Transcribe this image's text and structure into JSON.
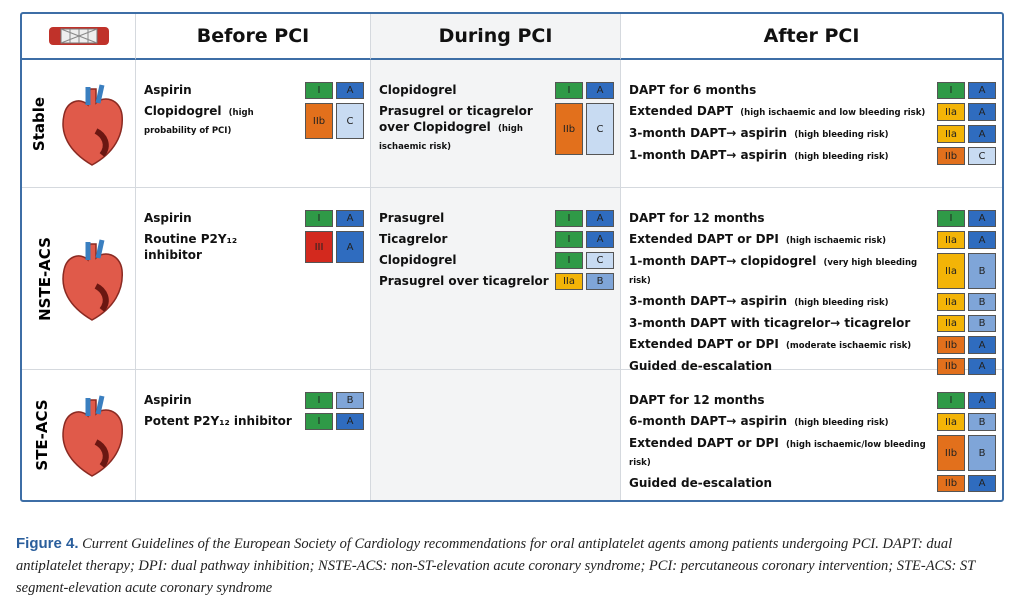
{
  "header": {
    "columns": [
      "Before PCI",
      "During PCI",
      "After PCI"
    ]
  },
  "rows": [
    {
      "label": "Stable",
      "cells": [
        [
          {
            "text": "Aspirin",
            "class": "I",
            "level": "A"
          },
          {
            "text": "Clopidogrel",
            "note": "(high probability of PCI)",
            "class": "IIb",
            "level": "C"
          }
        ],
        [
          {
            "text": "Clopidogrel",
            "class": "I",
            "level": "A"
          },
          {
            "text": "Prasugrel or ticagrelor over Clopidogrel",
            "note": "(high ischaemic risk)",
            "class": "IIb",
            "level": "C"
          }
        ],
        [
          {
            "text": "DAPT for 6 months",
            "class": "I",
            "level": "A"
          },
          {
            "text": "Extended DAPT",
            "note": "(high ischaemic and low bleeding risk)",
            "class": "IIa",
            "level": "A"
          },
          {
            "text": "3-month DAPT→ aspirin",
            "note": "(high bleeding risk)",
            "class": "IIa",
            "level": "A"
          },
          {
            "text": "1-month DAPT→ aspirin",
            "note": "(high bleeding risk)",
            "class": "IIb",
            "level": "C"
          }
        ]
      ]
    },
    {
      "label": "NSTE-ACS",
      "cells": [
        [
          {
            "text": "Aspirin",
            "class": "I",
            "level": "A"
          },
          {
            "text": "Routine P2Y₁₂ inhibitor",
            "class": "III",
            "level": "A"
          }
        ],
        [
          {
            "text": "Prasugrel",
            "class": "I",
            "level": "A"
          },
          {
            "text": "Ticagrelor",
            "class": "I",
            "level": "A"
          },
          {
            "text": "Clopidogrel",
            "class": "I",
            "level": "C"
          },
          {
            "text": "Prasugrel over ticagrelor",
            "class": "IIa",
            "level": "B"
          }
        ],
        [
          {
            "text": "DAPT for 12 months",
            "class": "I",
            "level": "A"
          },
          {
            "text": "Extended DAPT or DPI",
            "note": "(high ischaemic risk)",
            "class": "IIa",
            "level": "A"
          },
          {
            "text": "1-month DAPT→ clopidogrel",
            "note": "(very high bleeding risk)",
            "class": "IIa",
            "level": "B"
          },
          {
            "text": "3-month DAPT→ aspirin",
            "note": "(high bleeding risk)",
            "class": "IIa",
            "level": "B"
          },
          {
            "text": "3-month DAPT with ticagrelor→ ticagrelor",
            "class": "IIa",
            "level": "B"
          },
          {
            "text": "Extended DAPT or DPI",
            "note": "(moderate ischaemic risk)",
            "class": "IIb",
            "level": "A"
          },
          {
            "text": "Guided de-escalation",
            "class": "IIb",
            "level": "A"
          }
        ]
      ]
    },
    {
      "label": "STE-ACS",
      "cells": [
        [
          {
            "text": "Aspirin",
            "class": "I",
            "level": "B"
          },
          {
            "text": "Potent P2Y₁₂ inhibitor",
            "class": "I",
            "level": "A"
          }
        ],
        [],
        [
          {
            "text": "DAPT for 12 months",
            "class": "I",
            "level": "A"
          },
          {
            "text": "6-month DAPT→ aspirin",
            "note": "(high bleeding risk)",
            "class": "IIa",
            "level": "B"
          },
          {
            "text": "Extended DAPT or DPI",
            "note": "(high ischaemic/low bleeding risk)",
            "class": "IIb",
            "level": "B"
          },
          {
            "text": "Guided de-escalation",
            "class": "IIb",
            "level": "A"
          }
        ]
      ]
    }
  ],
  "caption": {
    "label": "Figure 4.",
    "text": "Current Guidelines of the European Society of Cardiology recommendations for oral antiplatelet agents among patients undergoing PCI. DAPT: dual antiplatelet therapy; DPI: dual pathway inhibition; NSTE-ACS: non-ST-elevation acute coronary syndrome; PCI: percutaneous coronary intervention; STE-ACS: ST segment-elevation acute coronary syndrome"
  }
}
